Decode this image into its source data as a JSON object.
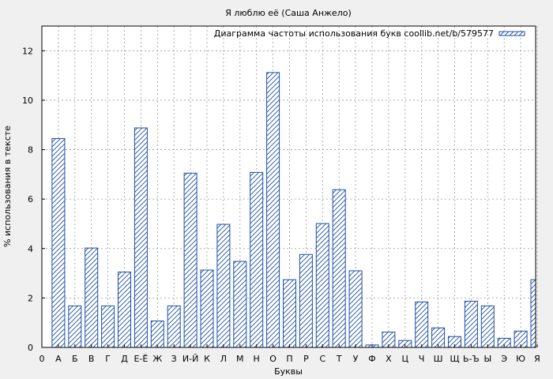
{
  "chart_data": {
    "type": "bar",
    "title": "Я люблю её (Саша Анжело)",
    "xlabel": "Буквы",
    "ylabel": "% использования в тексте",
    "legend_position": "top-right",
    "grid": true,
    "ylim": [
      0,
      13
    ],
    "y_ticks": [
      0,
      2,
      4,
      6,
      8,
      10,
      12
    ],
    "x_start_label": "0",
    "categories": [
      "А",
      "Б",
      "В",
      "Г",
      "Д",
      "Е-Ё",
      "Ж",
      "З",
      "И-Й",
      "К",
      "Л",
      "М",
      "Н",
      "О",
      "П",
      "Р",
      "С",
      "Т",
      "У",
      "Ф",
      "Х",
      "Ц",
      "Ч",
      "Ш",
      "Щ",
      "Ь-Ъ",
      "Ы",
      "Э",
      "Ю",
      "Я"
    ],
    "series": [
      {
        "name": "Диаграмма частоты использования букв coollib.net/b/579577",
        "color": "#1f4fa8",
        "fill_pattern": "diagonal-hatch",
        "values": [
          8.45,
          1.68,
          4.02,
          1.68,
          3.05,
          8.88,
          1.07,
          1.68,
          7.05,
          3.13,
          4.98,
          3.48,
          7.08,
          11.12,
          2.74,
          3.76,
          5.01,
          6.38,
          3.1,
          0.1,
          0.62,
          0.28,
          1.84,
          0.79,
          0.44,
          1.87,
          1.68,
          0.37,
          0.66,
          2.74
        ]
      }
    ]
  }
}
